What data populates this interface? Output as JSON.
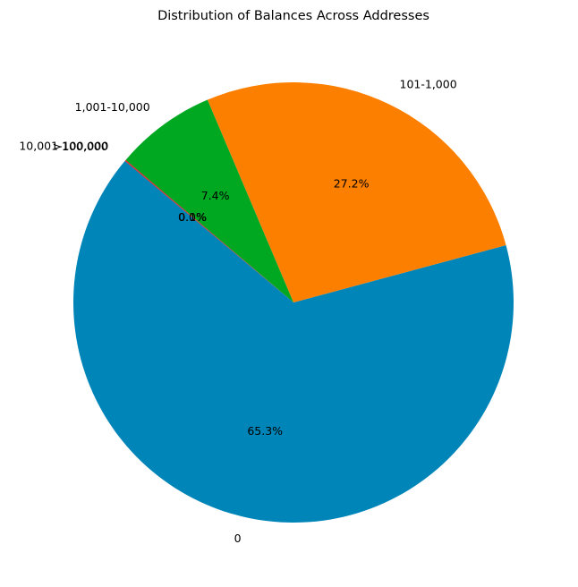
{
  "chart_data": {
    "type": "pie",
    "title": "Distribution of Balances Across Addresses",
    "categories": [
      "0",
      "101-1,000",
      "1,001-10,000",
      "10,001-100,000",
      ">100,000"
    ],
    "values": [
      65.3,
      27.2,
      7.4,
      0.1,
      0.0
    ],
    "labels": [
      "65.3%",
      "27.2%",
      "7.4%",
      "0.1%",
      "0.0%"
    ],
    "colors": [
      "#0085b9",
      "#fd7f00",
      "#00a822",
      "#d62728",
      "#9467bd"
    ],
    "start_angle_deg": 140,
    "direction": "counterclockwise",
    "legend": "none"
  }
}
